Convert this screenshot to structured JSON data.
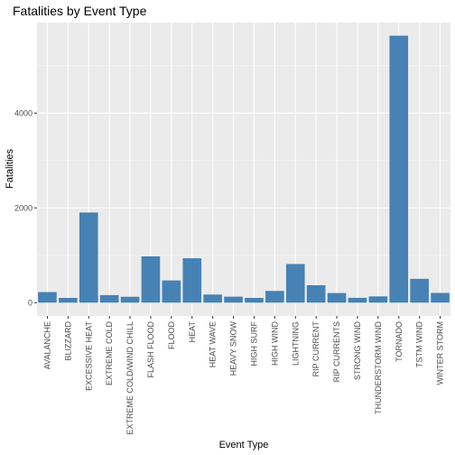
{
  "chart_data": {
    "type": "bar",
    "title": "Fatalities by Event Type",
    "xlabel": "Event Type",
    "ylabel": "Fatalities",
    "categories": [
      "AVALANCHE",
      "BLIZZARD",
      "EXCESSIVE HEAT",
      "EXTREME COLD",
      "EXTREME COLD/WIND CHILL",
      "FLASH FLOOD",
      "FLOOD",
      "HEAT",
      "HEAT WAVE",
      "HEAVY SNOW",
      "HIGH SURF",
      "HIGH WIND",
      "LIGHTNING",
      "RIP CURRENT",
      "RIP CURRENTS",
      "STRONG WIND",
      "THUNDERSTORM WIND",
      "TORNADO",
      "TSTM WIND",
      "WINTER STORM"
    ],
    "values": [
      224,
      101,
      1903,
      160,
      125,
      978,
      470,
      937,
      172,
      127,
      101,
      248,
      816,
      368,
      204,
      103,
      133,
      5633,
      504,
      206
    ],
    "ylim": [
      -280,
      5910
    ],
    "yticks": [
      0,
      2000,
      4000
    ],
    "bar_color": "#4682b4",
    "panel_color": "#ebebeb",
    "grid": true,
    "legend": "none"
  }
}
